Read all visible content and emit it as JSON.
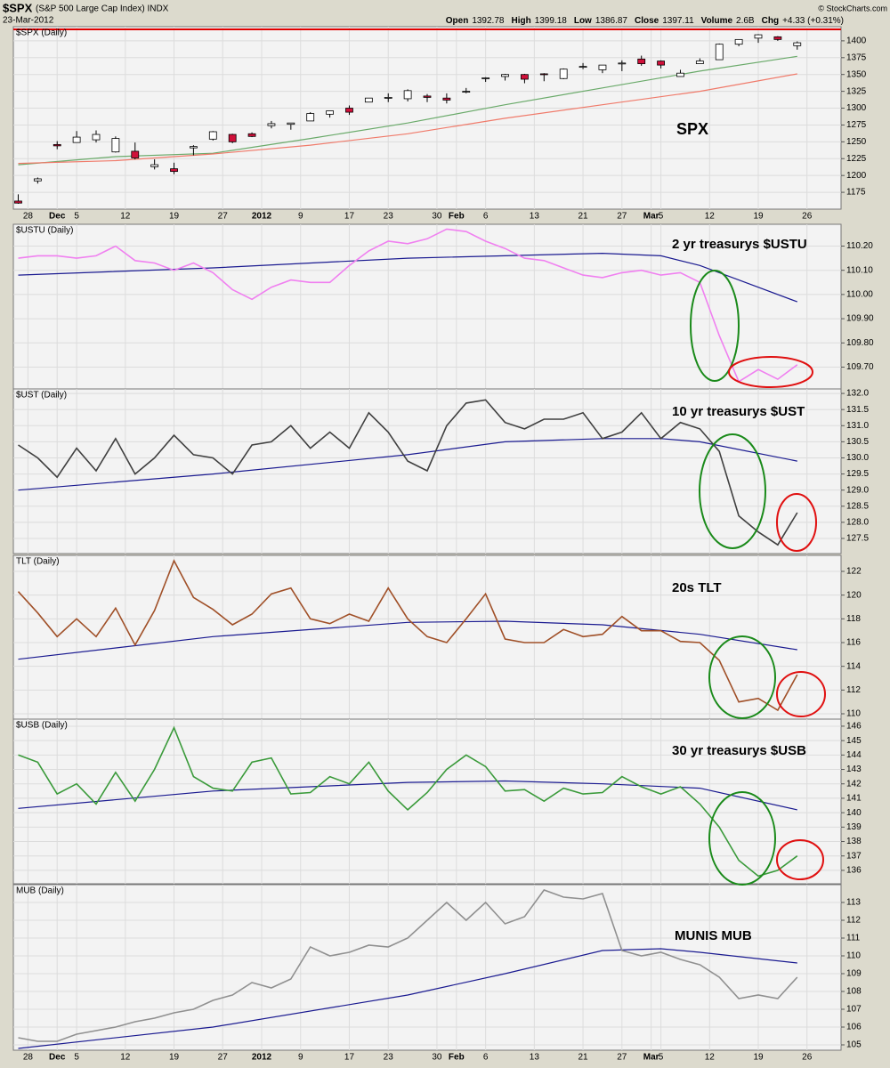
{
  "header": {
    "symbol": "$SPX",
    "name": "(S&P 500 Large Cap Index) INDX",
    "date": "23-Mar-2012",
    "credit": "© StockCharts.com",
    "stats": [
      {
        "label": "Open",
        "value": "1392.78"
      },
      {
        "label": "High",
        "value": "1399.18"
      },
      {
        "label": "Low",
        "value": "1386.87"
      },
      {
        "label": "Close",
        "value": "1397.11"
      },
      {
        "label": "Volume",
        "value": "2.6B"
      },
      {
        "label": "Chg",
        "value": "+4.33 (+0.31%)"
      }
    ]
  },
  "chart_data": [
    {
      "type": "candlestick",
      "title": "$SPX (Daily)",
      "annotation": "SPX",
      "annotation_color": "#1a8a1a",
      "up_color": "#ffffff",
      "down_color": "#d0103a",
      "xlim": [
        -0.5,
        84.5
      ],
      "xticks": [
        {
          "value": 1,
          "label": "28"
        },
        {
          "value": 4,
          "label": "Dec"
        },
        {
          "value": 6,
          "label": "5"
        },
        {
          "value": 11,
          "label": "12"
        },
        {
          "value": 16,
          "label": "19"
        },
        {
          "value": 21,
          "label": "27"
        },
        {
          "value": 25,
          "label": "2012"
        },
        {
          "value": 29,
          "label": "9"
        },
        {
          "value": 34,
          "label": "17"
        },
        {
          "value": 38,
          "label": "23"
        },
        {
          "value": 43,
          "label": "30"
        },
        {
          "value": 45,
          "label": "Feb"
        },
        {
          "value": 48,
          "label": "6"
        },
        {
          "value": 53,
          "label": "13"
        },
        {
          "value": 58,
          "label": "21"
        },
        {
          "value": 62,
          "label": "27"
        },
        {
          "value": 65,
          "label": "Mar"
        },
        {
          "value": 66,
          "label": "5"
        },
        {
          "value": 71,
          "label": "12"
        },
        {
          "value": 76,
          "label": "19"
        },
        {
          "value": 81,
          "label": "26"
        }
      ],
      "ylim": [
        1150,
        1421
      ],
      "yticks": [
        1175,
        1200,
        1225,
        1250,
        1275,
        1300,
        1325,
        1350,
        1375,
        1400
      ],
      "x": [
        0,
        2,
        4,
        6,
        8,
        10,
        12,
        14,
        16,
        18,
        20,
        22,
        24,
        26,
        28,
        30,
        32,
        34,
        36,
        38,
        40,
        42,
        44,
        46,
        48,
        50,
        52,
        54,
        56,
        58,
        60,
        62,
        64,
        66,
        68,
        70,
        72,
        74,
        76,
        78,
        80
      ],
      "open": [
        1162,
        1192,
        1246,
        1249,
        1253,
        1235,
        1236,
        1213,
        1210,
        1241,
        1254,
        1261,
        1262,
        1274,
        1276,
        1281,
        1291,
        1300,
        1309,
        1315,
        1314,
        1318,
        1315,
        1324,
        1344,
        1347,
        1350,
        1351,
        1344,
        1362,
        1357,
        1366,
        1373,
        1370,
        1347,
        1366,
        1372,
        1395,
        1404,
        1406,
        1392.78
      ],
      "high": [
        1172,
        1197,
        1251,
        1266,
        1267,
        1258,
        1249,
        1224,
        1219,
        1245,
        1266,
        1262,
        1264,
        1281,
        1278,
        1294,
        1296,
        1304,
        1315,
        1322,
        1328,
        1321,
        1322,
        1330,
        1346,
        1351,
        1351,
        1352,
        1359,
        1367,
        1364,
        1371,
        1378,
        1371,
        1357,
        1374,
        1396,
        1402,
        1410,
        1407,
        1399.18
      ],
      "low": [
        1158,
        1188,
        1239,
        1249,
        1249,
        1234,
        1224,
        1209,
        1202,
        1230,
        1252,
        1248,
        1257,
        1270,
        1268,
        1281,
        1286,
        1290,
        1309,
        1309,
        1310,
        1309,
        1307,
        1322,
        1339,
        1341,
        1337,
        1340,
        1343,
        1358,
        1352,
        1355,
        1363,
        1359,
        1347,
        1366,
        1372,
        1392,
        1397,
        1400,
        1386.87
      ],
      "close": [
        1159,
        1195,
        1244,
        1257,
        1261,
        1255,
        1226,
        1216,
        1206,
        1243,
        1265,
        1250,
        1258,
        1277,
        1278,
        1292,
        1296,
        1294,
        1315,
        1316,
        1326,
        1316,
        1312,
        1325,
        1345,
        1350,
        1343,
        1350,
        1358,
        1362,
        1364,
        1367,
        1366,
        1364,
        1352,
        1370,
        1395,
        1402,
        1409,
        1402,
        1397.11
      ],
      "series": [
        {
          "color": "#6aaa6a",
          "x": [
            0,
            10,
            20,
            30,
            40,
            50,
            60,
            70,
            80
          ],
          "values": [
            1216,
            1228,
            1233,
            1255,
            1278,
            1305,
            1330,
            1355,
            1377
          ]
        },
        {
          "color": "#f07a6a",
          "x": [
            0,
            10,
            20,
            30,
            40,
            50,
            60,
            70,
            80
          ],
          "values": [
            1218,
            1222,
            1232,
            1245,
            1262,
            1285,
            1305,
            1325,
            1351
          ]
        }
      ]
    },
    {
      "type": "line",
      "title": "$USTU (Daily)",
      "annotation": "2 yr treasurys $USTU",
      "annotation_color": "#e020e0",
      "ylim": [
        109.61,
        110.29
      ],
      "yticks": [
        {
          "value": 109.7,
          "label": "109.70"
        },
        {
          "value": 109.8,
          "label": "109.80"
        },
        {
          "value": 109.9,
          "label": "109.90"
        },
        {
          "value": 110,
          "label": "110.00"
        },
        {
          "value": 110.1,
          "label": "110.10"
        },
        {
          "value": 110.2,
          "label": "110.20"
        }
      ],
      "x": [
        0,
        2,
        4,
        6,
        8,
        10,
        12,
        14,
        16,
        18,
        20,
        22,
        24,
        26,
        28,
        30,
        32,
        34,
        36,
        38,
        40,
        42,
        44,
        46,
        48,
        50,
        52,
        54,
        56,
        58,
        60,
        62,
        64,
        66,
        68,
        70,
        72,
        74,
        76,
        78,
        80
      ],
      "series": [
        {
          "color": "#f080f0",
          "values": [
            110.15,
            110.16,
            110.16,
            110.15,
            110.16,
            110.2,
            110.14,
            110.13,
            110.1,
            110.13,
            110.09,
            110.02,
            109.98,
            110.03,
            110.06,
            110.05,
            110.05,
            110.12,
            110.18,
            110.22,
            110.21,
            110.23,
            110.27,
            110.26,
            110.22,
            110.19,
            110.15,
            110.14,
            110.11,
            110.08,
            110.07,
            110.09,
            110.1,
            110.08,
            110.09,
            110.05,
            109.83,
            109.64,
            109.69,
            109.65,
            109.71
          ]
        },
        {
          "color": "#1a1a90",
          "x": [
            0,
            20,
            40,
            60,
            66,
            70,
            74,
            80
          ],
          "values": [
            110.08,
            110.11,
            110.15,
            110.17,
            110.16,
            110.12,
            110.06,
            109.97
          ]
        }
      ]
    },
    {
      "type": "line",
      "title": "$UST (Daily)",
      "annotation": "10 yr  treasurys $UST",
      "annotation_color": "#000000",
      "ylim": [
        127.03,
        132.14
      ],
      "yticks": [
        {
          "value": 127.5,
          "label": "127.5"
        },
        {
          "value": 128,
          "label": "128.0"
        },
        {
          "value": 128.5,
          "label": "128.5"
        },
        {
          "value": 129,
          "label": "129.0"
        },
        {
          "value": 129.5,
          "label": "129.5"
        },
        {
          "value": 130,
          "label": "130.0"
        },
        {
          "value": 130.5,
          "label": "130.5"
        },
        {
          "value": 131,
          "label": "131.0"
        },
        {
          "value": 131.5,
          "label": "131.5"
        },
        {
          "value": 132,
          "label": "132.0"
        }
      ],
      "x": [
        0,
        2,
        4,
        6,
        8,
        10,
        12,
        14,
        16,
        18,
        20,
        22,
        24,
        26,
        28,
        30,
        32,
        34,
        36,
        38,
        40,
        42,
        44,
        46,
        48,
        50,
        52,
        54,
        56,
        58,
        60,
        62,
        64,
        66,
        68,
        70,
        72,
        74,
        76,
        78,
        80
      ],
      "series": [
        {
          "color": "#404040",
          "values": [
            130.4,
            130.0,
            129.4,
            130.3,
            129.6,
            130.6,
            129.5,
            130.0,
            130.7,
            130.1,
            130.0,
            129.5,
            130.4,
            130.5,
            131.0,
            130.3,
            130.8,
            130.3,
            131.4,
            130.8,
            129.9,
            129.6,
            131.0,
            131.7,
            131.8,
            131.1,
            130.9,
            131.2,
            131.2,
            131.4,
            130.6,
            130.8,
            131.4,
            130.6,
            131.1,
            130.9,
            130.2,
            128.2,
            127.7,
            127.3,
            128.3
          ]
        },
        {
          "color": "#1a1a90",
          "x": [
            0,
            20,
            40,
            50,
            60,
            66,
            70,
            80
          ],
          "values": [
            129.0,
            129.5,
            130.1,
            130.5,
            130.6,
            130.6,
            130.5,
            129.9
          ]
        }
      ]
    },
    {
      "type": "line",
      "title": "TLT (Daily)",
      "annotation": "20s TLT",
      "annotation_color": "#6a3010",
      "ylim": [
        109.55,
        123.35
      ],
      "yticks": [
        110,
        112,
        114,
        116,
        118,
        120,
        122
      ],
      "x": [
        0,
        2,
        4,
        6,
        8,
        10,
        12,
        14,
        16,
        18,
        20,
        22,
        24,
        26,
        28,
        30,
        32,
        34,
        36,
        38,
        40,
        42,
        44,
        46,
        48,
        50,
        52,
        54,
        56,
        58,
        60,
        62,
        64,
        66,
        68,
        70,
        72,
        74,
        76,
        78,
        80
      ],
      "series": [
        {
          "color": "#a05028",
          "values": [
            120.3,
            118.5,
            116.5,
            118.0,
            116.5,
            118.9,
            115.8,
            118.7,
            122.9,
            119.8,
            118.8,
            117.5,
            118.4,
            120.1,
            120.6,
            118.0,
            117.6,
            118.4,
            117.8,
            120.6,
            118.0,
            116.5,
            116.0,
            118.0,
            120.1,
            116.3,
            116.0,
            116.0,
            117.1,
            116.5,
            116.7,
            118.2,
            117.0,
            117.0,
            116.1,
            116.0,
            114.5,
            111.0,
            111.3,
            110.3,
            113.3
          ]
        },
        {
          "color": "#1a1a90",
          "x": [
            0,
            20,
            40,
            50,
            60,
            70,
            80
          ],
          "values": [
            114.6,
            116.5,
            117.7,
            117.8,
            117.5,
            116.7,
            115.4
          ]
        }
      ]
    },
    {
      "type": "line",
      "title": "$USB (Daily)",
      "annotation": "30 yr treasurys $USB",
      "annotation_color": "#1a7a1a",
      "ylim": [
        135.07,
        146.49
      ],
      "yticks": [
        136,
        137,
        138,
        139,
        140,
        141,
        142,
        143,
        144,
        145,
        146
      ],
      "x": [
        0,
        2,
        4,
        6,
        8,
        10,
        12,
        14,
        16,
        18,
        20,
        22,
        24,
        26,
        28,
        30,
        32,
        34,
        36,
        38,
        40,
        42,
        44,
        46,
        48,
        50,
        52,
        54,
        56,
        58,
        60,
        62,
        64,
        66,
        68,
        70,
        72,
        74,
        76,
        78,
        80
      ],
      "series": [
        {
          "color": "#3a9a3a",
          "values": [
            144.0,
            143.5,
            141.3,
            142.0,
            140.6,
            142.8,
            140.8,
            143.0,
            145.9,
            142.5,
            141.7,
            141.5,
            143.5,
            143.8,
            141.3,
            141.4,
            142.5,
            142.0,
            143.5,
            141.5,
            140.2,
            141.4,
            143.0,
            144.0,
            143.2,
            141.5,
            141.6,
            140.8,
            141.7,
            141.3,
            141.4,
            142.5,
            141.8,
            141.3,
            141.8,
            140.6,
            139.0,
            136.7,
            135.6,
            136.0,
            137.0
          ]
        },
        {
          "color": "#1a1a90",
          "x": [
            0,
            20,
            40,
            50,
            60,
            70,
            80
          ],
          "values": [
            140.3,
            141.5,
            142.1,
            142.2,
            142.0,
            141.7,
            140.2
          ]
        }
      ]
    },
    {
      "type": "line",
      "title": "MUB (Daily)",
      "annotation": "MUNIS MUB",
      "annotation_color": "#808080",
      "xlim": [
        -0.5,
        84.5
      ],
      "xticks": [
        {
          "value": 1,
          "label": "28"
        },
        {
          "value": 4,
          "label": "Dec"
        },
        {
          "value": 6,
          "label": "5"
        },
        {
          "value": 11,
          "label": "12"
        },
        {
          "value": 16,
          "label": "19"
        },
        {
          "value": 21,
          "label": "27"
        },
        {
          "value": 25,
          "label": "2012"
        },
        {
          "value": 29,
          "label": "9"
        },
        {
          "value": 34,
          "label": "17"
        },
        {
          "value": 38,
          "label": "23"
        },
        {
          "value": 43,
          "label": "30"
        },
        {
          "value": 45,
          "label": "Feb"
        },
        {
          "value": 48,
          "label": "6"
        },
        {
          "value": 53,
          "label": "13"
        },
        {
          "value": 58,
          "label": "21"
        },
        {
          "value": 62,
          "label": "27"
        },
        {
          "value": 65,
          "label": "Mar"
        },
        {
          "value": 66,
          "label": "5"
        },
        {
          "value": 71,
          "label": "12"
        },
        {
          "value": 76,
          "label": "19"
        },
        {
          "value": 81,
          "label": "26"
        }
      ],
      "ylim": [
        104.7,
        114
      ],
      "yticks": [
        105,
        106,
        107,
        108,
        109,
        110,
        111,
        112,
        113
      ],
      "x": [
        0,
        2,
        4,
        6,
        8,
        10,
        12,
        14,
        16,
        18,
        20,
        22,
        24,
        26,
        28,
        30,
        32,
        34,
        36,
        38,
        40,
        42,
        44,
        46,
        48,
        50,
        52,
        54,
        56,
        58,
        60,
        62,
        64,
        66,
        68,
        70,
        72,
        74,
        76,
        78,
        80
      ],
      "series": [
        {
          "color": "#909090",
          "values": [
            105.4,
            105.2,
            105.2,
            105.6,
            105.8,
            106.0,
            106.3,
            106.5,
            106.8,
            107.0,
            107.5,
            107.8,
            108.5,
            108.2,
            108.7,
            110.5,
            110.0,
            110.2,
            110.6,
            110.5,
            111.0,
            112.0,
            113.0,
            112.0,
            113.0,
            111.8,
            112.2,
            113.7,
            113.3,
            113.2,
            113.5,
            110.3,
            110.0,
            110.2,
            109.8,
            109.5,
            108.8,
            107.6,
            107.8,
            107.6,
            108.8
          ]
        },
        {
          "color": "#1a1a90",
          "x": [
            0,
            20,
            40,
            50,
            60,
            66,
            70,
            80
          ],
          "values": [
            104.8,
            106.0,
            107.8,
            109.0,
            110.3,
            110.4,
            110.2,
            109.6
          ]
        }
      ]
    }
  ]
}
